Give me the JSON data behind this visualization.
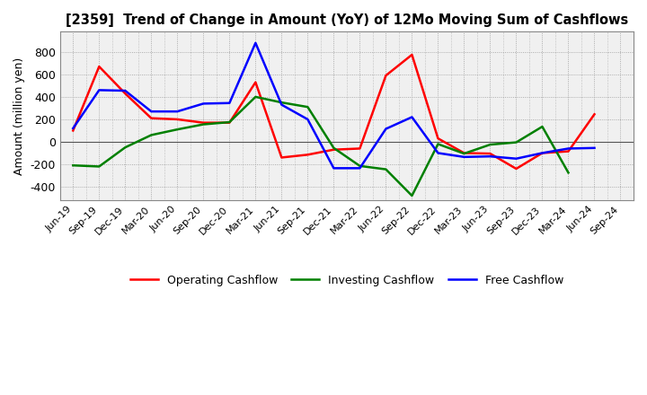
{
  "title": "[2359]  Trend of Change in Amount (YoY) of 12Mo Moving Sum of Cashflows",
  "ylabel": "Amount (million yen)",
  "x_labels": [
    "Jun-19",
    "Sep-19",
    "Dec-19",
    "Mar-20",
    "Jun-20",
    "Sep-20",
    "Dec-20",
    "Mar-21",
    "Jun-21",
    "Sep-21",
    "Dec-21",
    "Mar-22",
    "Jun-22",
    "Sep-22",
    "Dec-22",
    "Mar-23",
    "Jun-23",
    "Sep-23",
    "Dec-23",
    "Mar-24",
    "Jun-24",
    "Sep-24"
  ],
  "operating": [
    100,
    670,
    430,
    210,
    200,
    170,
    170,
    530,
    -140,
    -115,
    -70,
    -60,
    590,
    775,
    30,
    -100,
    -105,
    -240,
    -100,
    -85,
    245,
    null
  ],
  "investing": [
    -210,
    -220,
    -50,
    60,
    110,
    155,
    175,
    400,
    350,
    310,
    -55,
    -215,
    -245,
    -480,
    -20,
    -105,
    -25,
    -5,
    135,
    -275,
    null,
    null
  ],
  "free": [
    120,
    460,
    455,
    270,
    270,
    340,
    345,
    880,
    330,
    200,
    -235,
    -235,
    115,
    220,
    -100,
    -135,
    -130,
    -150,
    -100,
    -60,
    -55,
    null
  ],
  "operating_color": "#ff0000",
  "investing_color": "#008000",
  "free_color": "#0000ff",
  "ylim": [
    -520,
    980
  ],
  "yticks": [
    -400,
    -200,
    0,
    200,
    400,
    600,
    800
  ],
  "background_color": "#ffffff",
  "plot_bg_color": "#f0f0f0",
  "grid_color": "#999999",
  "legend_labels": [
    "Operating Cashflow",
    "Investing Cashflow",
    "Free Cashflow"
  ]
}
